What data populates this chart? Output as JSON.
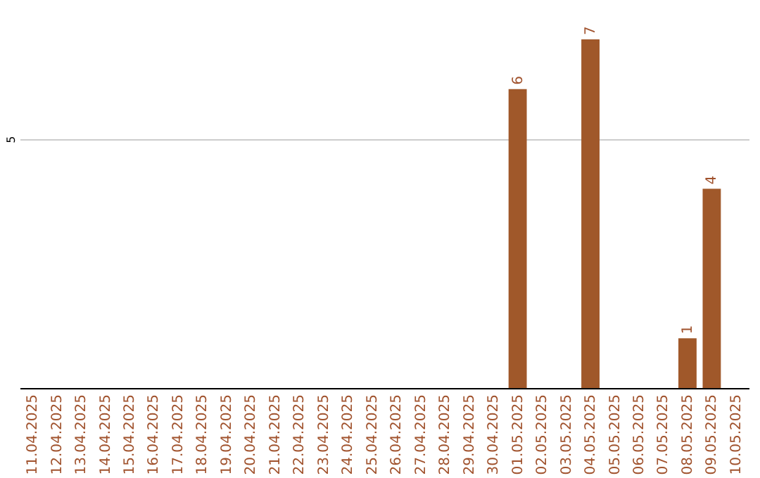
{
  "chart_data": {
    "type": "bar",
    "categories": [
      "11.04.2025",
      "12.04.2025",
      "13.04.2025",
      "14.04.2025",
      "15.04.2025",
      "16.04.2025",
      "17.04.2025",
      "18.04.2025",
      "19.04.2025",
      "20.04.2025",
      "21.04.2025",
      "22.04.2025",
      "23.04.2025",
      "24.04.2025",
      "25.04.2025",
      "26.04.2025",
      "27.04.2025",
      "28.04.2025",
      "29.04.2025",
      "30.04.2025",
      "01.05.2025",
      "02.05.2025",
      "03.05.2025",
      "04.05.2025",
      "05.05.2025",
      "06.05.2025",
      "07.05.2025",
      "08.05.2025",
      "09.05.2025",
      "10.05.2025"
    ],
    "values": [
      null,
      null,
      null,
      null,
      null,
      null,
      null,
      null,
      null,
      null,
      null,
      null,
      null,
      null,
      null,
      null,
      null,
      null,
      null,
      null,
      6,
      null,
      null,
      7,
      null,
      null,
      null,
      1,
      4,
      null
    ],
    "value_labels": [
      null,
      null,
      null,
      null,
      null,
      null,
      null,
      null,
      null,
      null,
      null,
      null,
      null,
      null,
      null,
      null,
      null,
      null,
      null,
      null,
      "6",
      null,
      null,
      "7",
      null,
      null,
      null,
      "1",
      "4",
      null
    ],
    "color": "#a0582a",
    "ylim": [
      0,
      7
    ],
    "yticks": [
      5
    ],
    "grid": "y"
  }
}
